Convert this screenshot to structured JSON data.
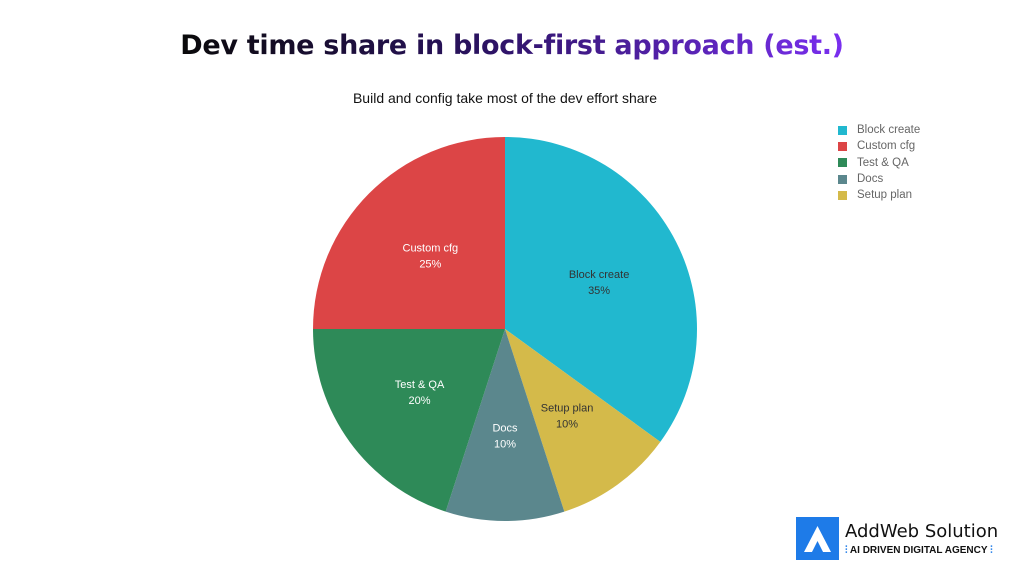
{
  "chart_data": {
    "type": "pie",
    "title": "Dev time share in block-first approach (est.)",
    "subtitle": "Build and config take most of the dev effort share",
    "slices": [
      {
        "label": "Block create",
        "value": 35,
        "display": "35%",
        "color": "#21b8cf",
        "text_color": "#333333"
      },
      {
        "label": "Setup plan",
        "value": 10,
        "display": "10%",
        "color": "#d4ba4a",
        "text_color": "#333333"
      },
      {
        "label": "Docs",
        "value": 10,
        "display": "10%",
        "color": "#5b878d",
        "text_color": "#ffffff"
      },
      {
        "label": "Test & QA",
        "value": 20,
        "display": "20%",
        "color": "#2e8a58",
        "text_color": "#ffffff"
      },
      {
        "label": "Custom cfg",
        "value": 25,
        "display": "25%",
        "color": "#dc4546",
        "text_color": "#ffffff"
      }
    ],
    "legend": {
      "placement": "top-right",
      "entries": [
        {
          "label": "Block create",
          "color": "#21b8cf"
        },
        {
          "label": "Custom cfg",
          "color": "#dc4546"
        },
        {
          "label": "Test & QA",
          "color": "#2e8a58"
        },
        {
          "label": "Docs",
          "color": "#5b878d"
        },
        {
          "label": "Setup plan",
          "color": "#d4ba4a"
        }
      ]
    }
  },
  "brand": {
    "name": "AddWeb Solution",
    "tagline": "AI DRIVEN DIGITAL AGENCY",
    "color": "#1e7be8"
  }
}
